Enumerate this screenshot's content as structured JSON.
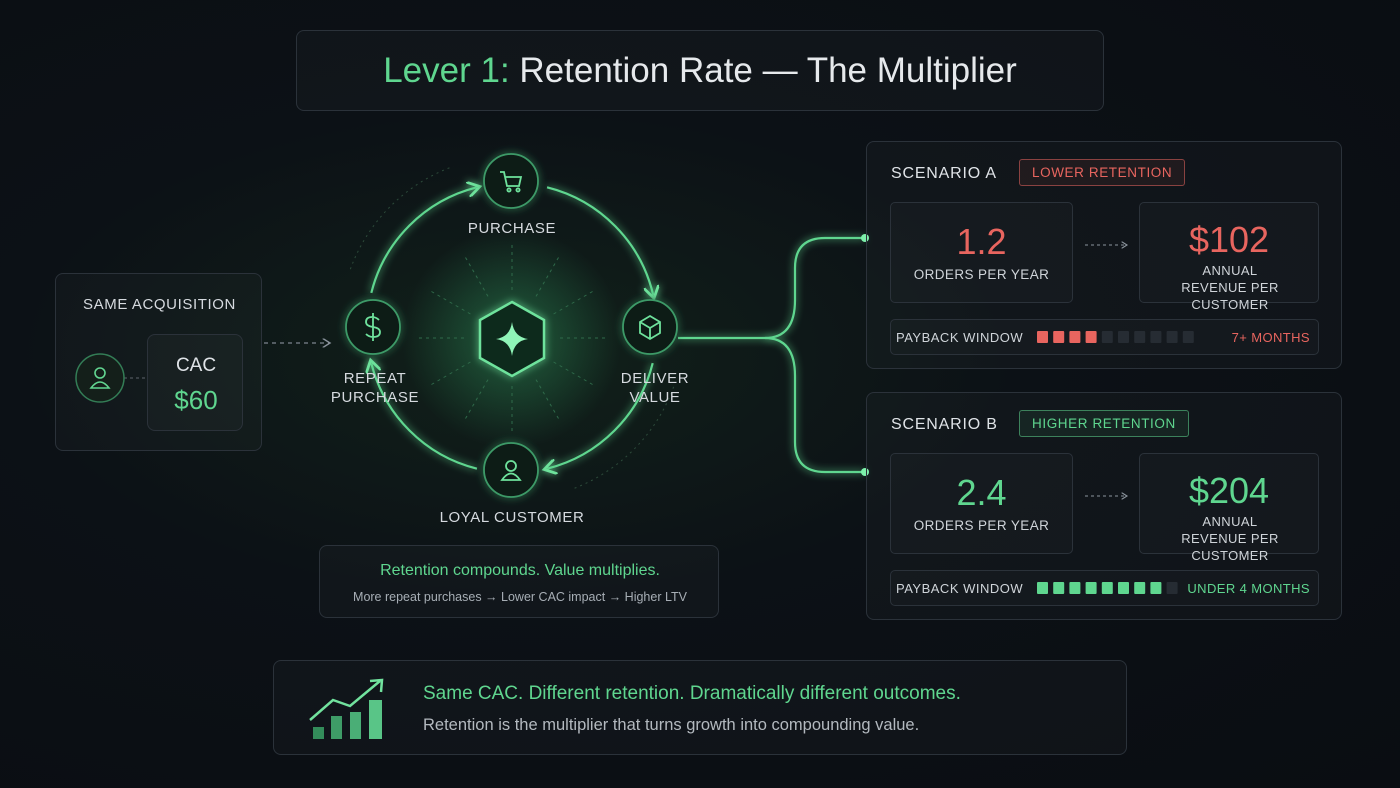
{
  "title": {
    "accent": "Lever 1:",
    "rest": "Retention Rate — The Multiplier"
  },
  "acquisition": {
    "label": "SAME ACQUISITION",
    "metric": "CAC",
    "value": "$60"
  },
  "cycle": {
    "nodes": [
      "PURCHASE",
      "DELIVER VALUE",
      "LOYAL CUSTOMER",
      "REPEAT PURCHASE"
    ]
  },
  "cycle_note": {
    "headline": "Retention compounds. Value multiplies.",
    "detail": "More repeat purchases → Lower CAC impact → Higher LTV"
  },
  "scenarios": [
    {
      "name": "SCENARIO A",
      "tag": "LOWER RETENTION",
      "accent": "#e8655f",
      "orders": "1.2",
      "orders_label": "ORDERS PER YEAR",
      "revenue": "$102",
      "revenue_label": "ANNUAL REVENUE PER CUSTOMER",
      "payback": {
        "label": "PAYBACK WINDOW",
        "filled": 4,
        "total": 10,
        "text": "7+ MONTHS"
      }
    },
    {
      "name": "SCENARIO B",
      "tag": "HIGHER RETENTION",
      "accent": "#5fd68f",
      "orders": "2.4",
      "orders_label": "ORDERS PER YEAR",
      "revenue": "$204",
      "revenue_label": "ANNUAL REVENUE PER CUSTOMER",
      "payback": {
        "label": "PAYBACK WINDOW",
        "filled": 8,
        "total": 9,
        "text": "UNDER 4 MONTHS"
      }
    }
  ],
  "footer": {
    "headline": "Same CAC. Different retention. Dramatically different outcomes.",
    "detail": "Retention is the multiplier that turns growth into compounding value."
  }
}
